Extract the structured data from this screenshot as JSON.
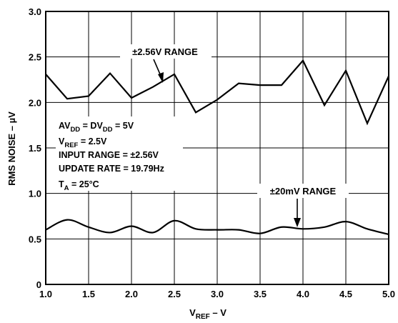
{
  "chart_data": {
    "type": "line",
    "title": "",
    "xlabel": {
      "main": "V",
      "sub": "REF",
      "tail": " – V"
    },
    "ylabel": "RMS NOISE – µV",
    "xlim": [
      1.0,
      5.0
    ],
    "ylim": [
      0,
      3.0
    ],
    "grid": true,
    "x_ticks": [
      "1.0",
      "1.5",
      "2.0",
      "2.5",
      "3.0",
      "3.5",
      "4.0",
      "4.5",
      "5.0"
    ],
    "y_ticks": [
      "0",
      "0.5",
      "1.0",
      "1.5",
      "2.0",
      "2.5",
      "3.0"
    ],
    "series": [
      {
        "name": "±2.56V RANGE",
        "x": [
          1.0,
          1.25,
          1.5,
          1.75,
          2.0,
          2.25,
          2.5,
          2.75,
          3.0,
          3.25,
          3.5,
          3.75,
          4.0,
          4.25,
          4.5,
          4.75,
          5.0
        ],
        "values": [
          2.31,
          2.04,
          2.07,
          2.32,
          2.05,
          2.17,
          2.31,
          1.89,
          2.03,
          2.21,
          2.19,
          2.19,
          2.46,
          1.97,
          2.35,
          1.77,
          2.29
        ]
      },
      {
        "name": "±20mV RANGE",
        "x": [
          1.0,
          1.25,
          1.5,
          1.75,
          2.0,
          2.25,
          2.5,
          2.75,
          3.0,
          3.25,
          3.5,
          3.75,
          4.0,
          4.25,
          4.5,
          4.75,
          5.0
        ],
        "values": [
          0.6,
          0.71,
          0.63,
          0.57,
          0.64,
          0.57,
          0.7,
          0.61,
          0.6,
          0.6,
          0.56,
          0.63,
          0.61,
          0.63,
          0.69,
          0.61,
          0.55
        ]
      }
    ],
    "annotations": {
      "conditions": [
        {
          "main": "AV",
          "sub": "DD",
          "mid": " = DV",
          "sub2": "DD",
          "tail": " = 5V"
        },
        {
          "main": "V",
          "sub": "REF",
          "tail": " = 2.5V"
        },
        {
          "main": "INPUT RANGE = ±2.56V"
        },
        {
          "main": "UPDATE RATE = 19.79Hz"
        },
        {
          "main": "T",
          "sub": "A",
          "tail": " = 25°C"
        }
      ]
    }
  }
}
